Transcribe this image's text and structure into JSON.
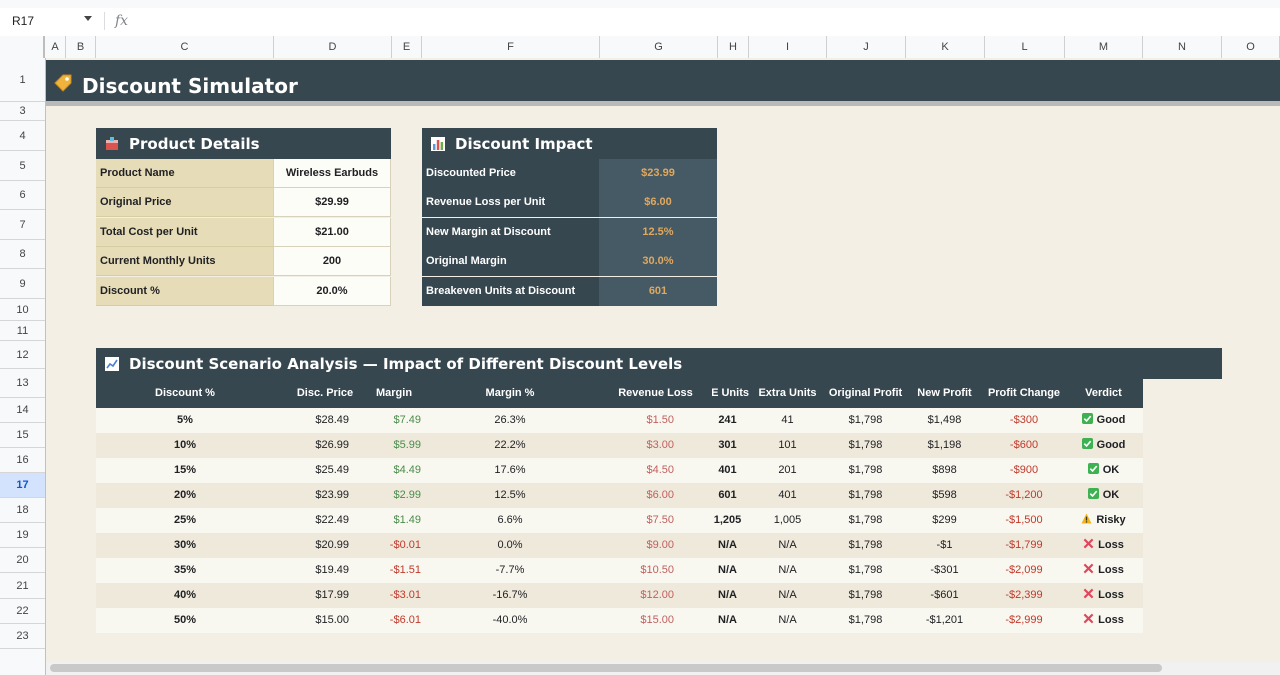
{
  "formula_bar": {
    "cell_ref": "R17",
    "fx_label": "fx"
  },
  "columns": [
    "A",
    "B",
    "C",
    "D",
    "E",
    "F",
    "G",
    "H",
    "I",
    "J",
    "K",
    "L",
    "M",
    "N",
    "O"
  ],
  "rows": [
    "1",
    "3",
    "4",
    "5",
    "6",
    "7",
    "8",
    "9",
    "10",
    "11",
    "12",
    "13",
    "14",
    "15",
    "16",
    "17",
    "18",
    "19",
    "20",
    "21",
    "22",
    "23"
  ],
  "active_row": "17",
  "title": "Discount Simulator",
  "product_details": {
    "heading": "Product Details",
    "rows": [
      {
        "label": "Product Name",
        "value": "Wireless Earbuds"
      },
      {
        "label": "Original Price",
        "value": "$29.99"
      },
      {
        "label": "Total Cost per Unit",
        "value": "$21.00"
      },
      {
        "label": "Current Monthly Units",
        "value": "200"
      },
      {
        "label": "Discount %",
        "value": "20.0%"
      }
    ]
  },
  "discount_impact": {
    "heading": "Discount Impact",
    "rows": [
      {
        "label": "Discounted Price",
        "value": "$23.99"
      },
      {
        "label": "Revenue Loss per Unit",
        "value": "$6.00"
      },
      {
        "label": "New Margin at Discount",
        "value": "12.5%"
      },
      {
        "label": "Original Margin",
        "value": "30.0%"
      },
      {
        "label": "Breakeven Units at Discount",
        "value": "601"
      }
    ]
  },
  "analysis": {
    "heading": "Discount Scenario Analysis — Impact of Different Discount Levels",
    "columns": [
      "Discount %",
      "Disc. Price",
      "Margin",
      "Margin %",
      "Revenue Loss",
      "BE Units",
      "Extra Units",
      "Original Profit",
      "New Profit",
      "Profit Change",
      "Verdict"
    ],
    "rows": [
      {
        "discount": "5%",
        "price": "$28.49",
        "margin": "$7.49",
        "margin_pct": "26.3%",
        "rev_loss": "$1.50",
        "be_units": "241",
        "extra": "41",
        "orig_profit": "$1,798",
        "new_profit": "$1,498",
        "change": "-$300",
        "verdict": "Good",
        "verdict_icon": "check-icon"
      },
      {
        "discount": "10%",
        "price": "$26.99",
        "margin": "$5.99",
        "margin_pct": "22.2%",
        "rev_loss": "$3.00",
        "be_units": "301",
        "extra": "101",
        "orig_profit": "$1,798",
        "new_profit": "$1,198",
        "change": "-$600",
        "verdict": "Good",
        "verdict_icon": "check-icon"
      },
      {
        "discount": "15%",
        "price": "$25.49",
        "margin": "$4.49",
        "margin_pct": "17.6%",
        "rev_loss": "$4.50",
        "be_units": "401",
        "extra": "201",
        "orig_profit": "$1,798",
        "new_profit": "$898",
        "change": "-$900",
        "verdict": "OK",
        "verdict_icon": "check-icon"
      },
      {
        "discount": "20%",
        "price": "$23.99",
        "margin": "$2.99",
        "margin_pct": "12.5%",
        "rev_loss": "$6.00",
        "be_units": "601",
        "extra": "401",
        "orig_profit": "$1,798",
        "new_profit": "$598",
        "change": "-$1,200",
        "verdict": "OK",
        "verdict_icon": "check-icon"
      },
      {
        "discount": "25%",
        "price": "$22.49",
        "margin": "$1.49",
        "margin_pct": "6.6%",
        "rev_loss": "$7.50",
        "be_units": "1,205",
        "extra": "1,005",
        "orig_profit": "$1,798",
        "new_profit": "$299",
        "change": "-$1,500",
        "verdict": "Risky",
        "verdict_icon": "warning-icon"
      },
      {
        "discount": "30%",
        "price": "$20.99",
        "margin": "-$0.01",
        "margin_pct": "0.0%",
        "rev_loss": "$9.00",
        "be_units": "N/A",
        "extra": "N/A",
        "orig_profit": "$1,798",
        "new_profit": "-$1",
        "change": "-$1,799",
        "verdict": "Loss",
        "verdict_icon": "cross-icon"
      },
      {
        "discount": "35%",
        "price": "$19.49",
        "margin": "-$1.51",
        "margin_pct": "-7.7%",
        "rev_loss": "$10.50",
        "be_units": "N/A",
        "extra": "N/A",
        "orig_profit": "$1,798",
        "new_profit": "-$301",
        "change": "-$2,099",
        "verdict": "Loss",
        "verdict_icon": "cross-icon"
      },
      {
        "discount": "40%",
        "price": "$17.99",
        "margin": "-$3.01",
        "margin_pct": "-16.7%",
        "rev_loss": "$12.00",
        "be_units": "N/A",
        "extra": "N/A",
        "orig_profit": "$1,798",
        "new_profit": "-$601",
        "change": "-$2,399",
        "verdict": "Loss",
        "verdict_icon": "cross-icon"
      },
      {
        "discount": "50%",
        "price": "$15.00",
        "margin": "-$6.01",
        "margin_pct": "-40.0%",
        "rev_loss": "$15.00",
        "be_units": "N/A",
        "extra": "N/A",
        "orig_profit": "$1,798",
        "new_profit": "-$1,201",
        "change": "-$2,999",
        "verdict": "Loss",
        "verdict_icon": "cross-icon"
      }
    ]
  },
  "colors": {
    "header": "#37474f",
    "sheet_bg": "#f3efe4",
    "label_bg": "#e6dcb7",
    "accent_value": "#e0a85f",
    "positive": "#4a8c4a",
    "negative": "#c0392b"
  }
}
